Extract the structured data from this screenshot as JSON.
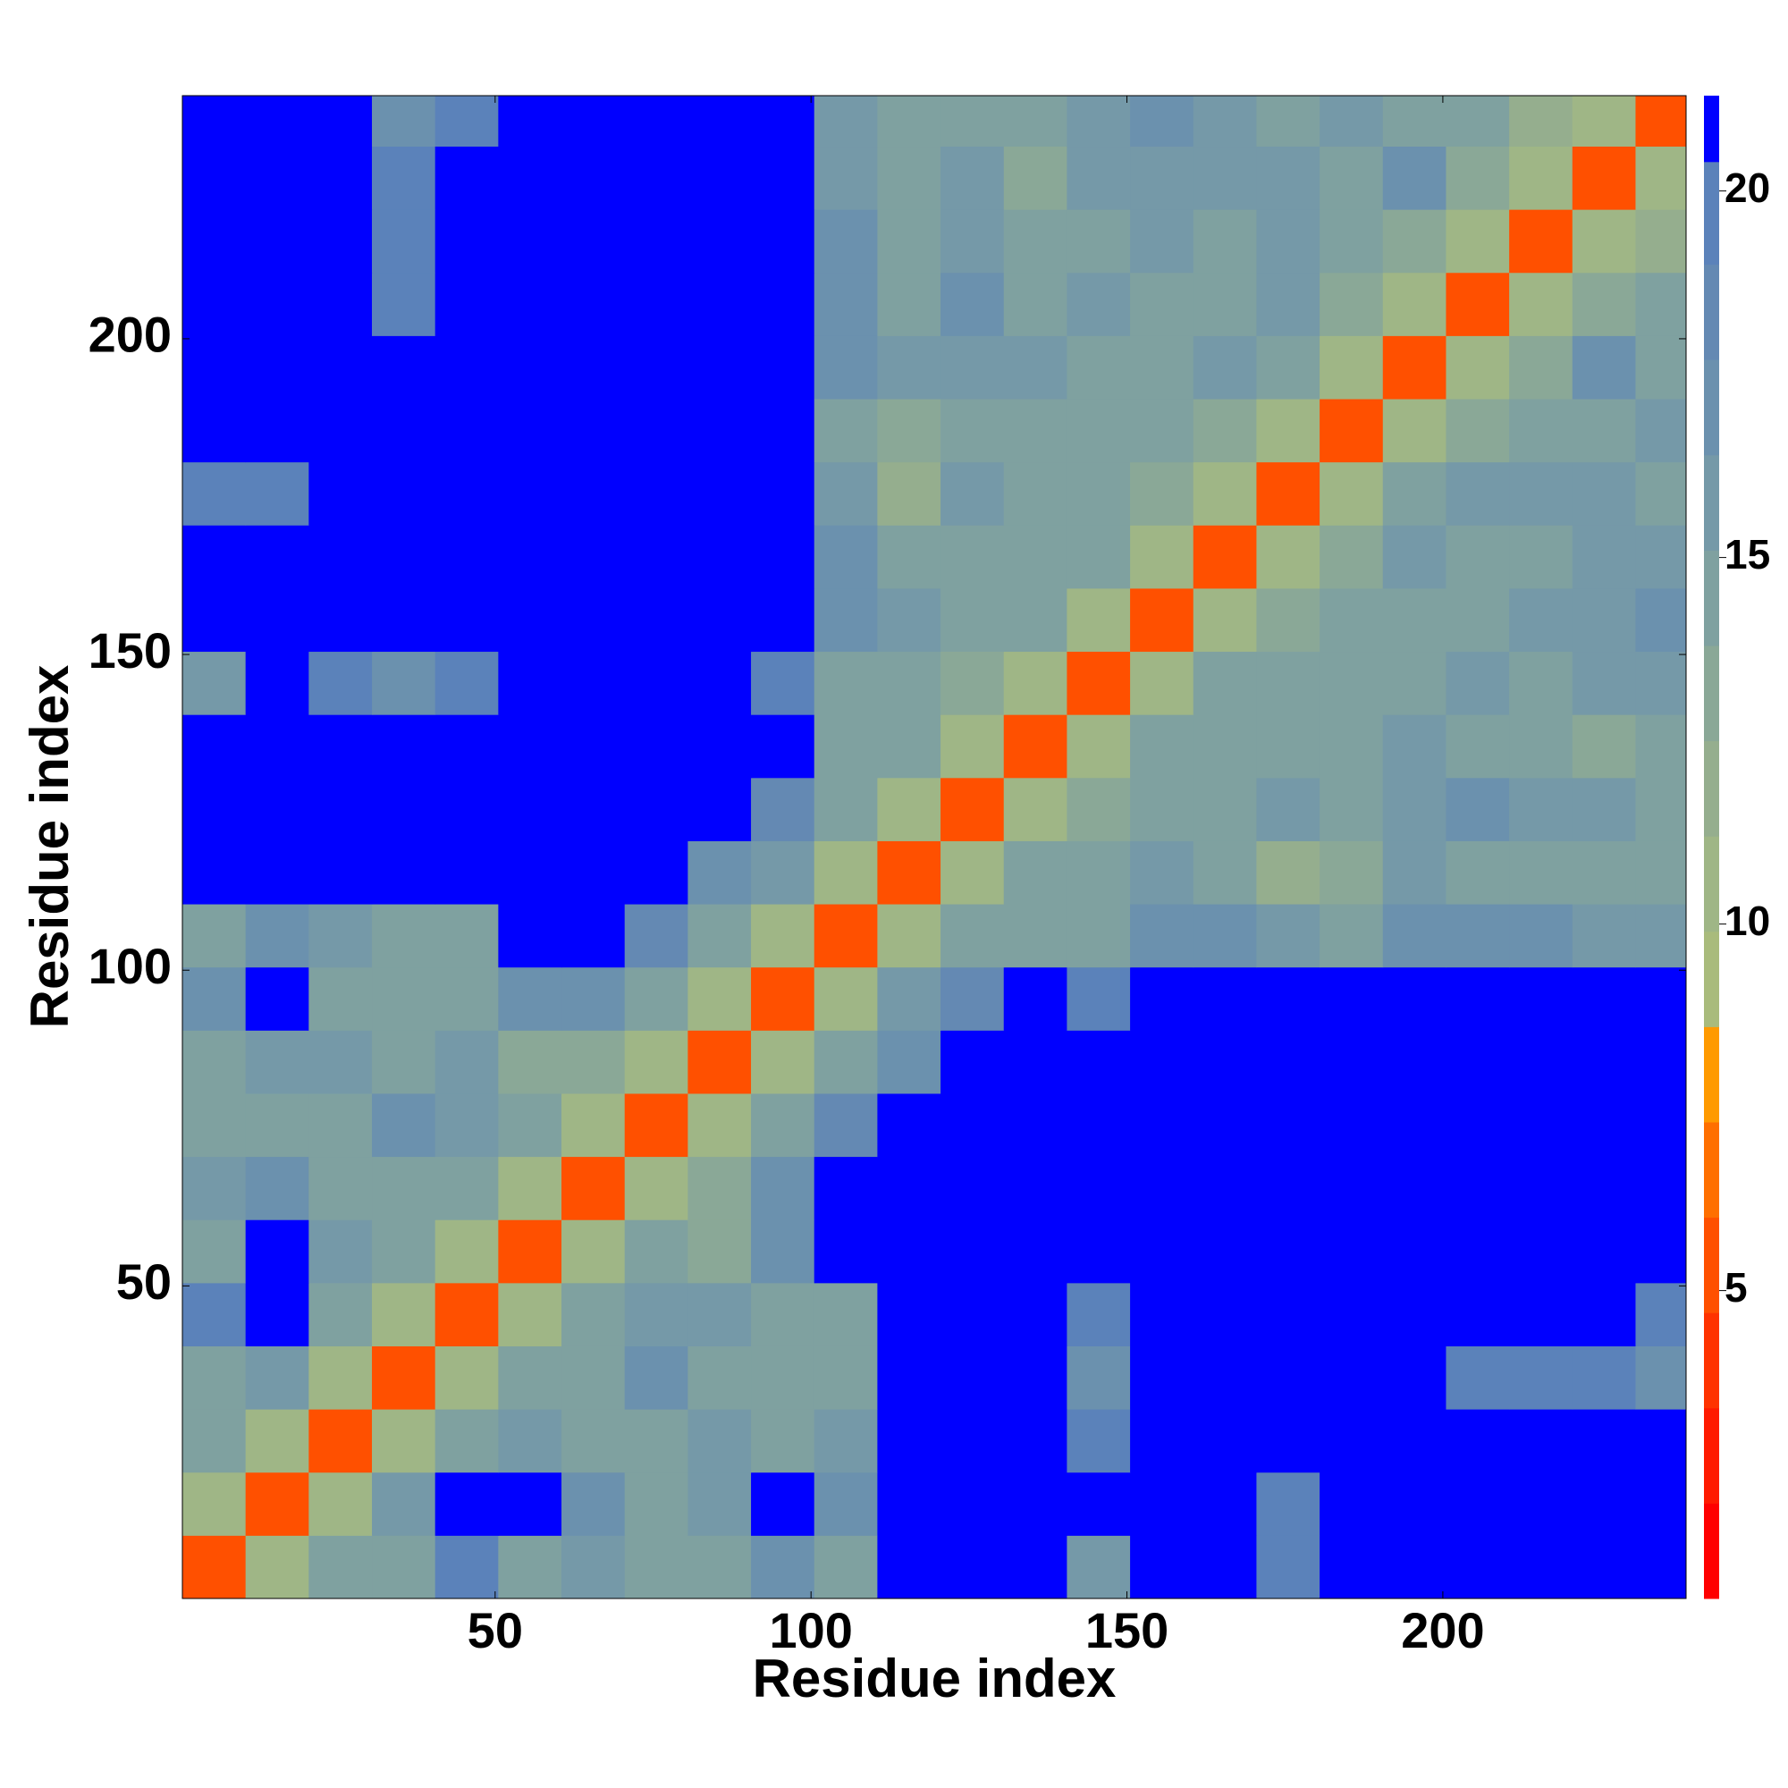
{
  "chart_data": {
    "type": "heatmap",
    "xlabel": "Residue index",
    "ylabel": "Residue index",
    "xlim": [
      0.5,
      238.5
    ],
    "ylim": [
      0.5,
      238.5
    ],
    "xticks": [
      50,
      100,
      150,
      200
    ],
    "yticks": [
      50,
      100,
      150,
      200
    ],
    "bins": [
      0.5,
      10.5,
      20.5,
      30.5,
      40.5,
      50.5,
      60.5,
      70.5,
      80.5,
      90.5,
      100.5,
      110.5,
      120.5,
      130.5,
      140.5,
      150.5,
      160.5,
      170.5,
      180.5,
      190.5,
      200.5,
      210.5,
      220.5,
      230.5,
      238.5
    ],
    "z": [
      [
        5,
        11,
        14,
        15,
        19,
        15,
        16,
        15,
        14,
        17,
        15,
        21,
        21,
        21,
        16,
        21,
        21,
        19,
        21,
        21,
        21,
        21,
        21,
        21
      ],
      [
        11,
        5,
        11,
        16,
        21,
        21,
        17,
        15,
        16,
        21,
        17,
        21,
        21,
        21,
        21,
        21,
        21,
        19,
        21,
        21,
        21,
        21,
        21,
        21
      ],
      [
        14,
        11,
        5,
        11,
        14,
        16,
        15,
        14,
        16,
        14,
        16,
        21,
        21,
        21,
        19,
        21,
        21,
        21,
        21,
        21,
        21,
        21,
        21,
        21
      ],
      [
        15,
        16,
        11,
        5,
        11,
        14,
        15,
        17,
        15,
        15,
        14,
        21,
        21,
        21,
        17,
        21,
        21,
        21,
        21,
        21,
        20,
        20,
        19,
        17
      ],
      [
        19,
        21,
        14,
        11,
        5,
        11,
        14,
        16,
        16,
        15,
        15,
        21,
        21,
        21,
        20,
        21,
        21,
        21,
        21,
        21,
        21,
        21,
        21,
        20
      ],
      [
        15,
        21,
        16,
        14,
        11,
        5,
        11,
        15,
        13,
        17,
        21,
        21,
        21,
        21,
        21,
        21,
        21,
        21,
        21,
        21,
        21,
        21,
        21,
        21
      ],
      [
        16,
        17,
        15,
        15,
        14,
        11,
        5,
        10,
        13,
        17,
        21,
        21,
        21,
        21,
        21,
        21,
        21,
        21,
        21,
        21,
        21,
        21,
        21,
        21
      ],
      [
        15,
        15,
        14,
        17,
        16,
        15,
        10,
        5,
        11,
        14,
        18,
        21,
        21,
        21,
        21,
        21,
        21,
        21,
        21,
        21,
        21,
        21,
        21,
        21
      ],
      [
        14,
        16,
        16,
        15,
        16,
        13,
        13,
        11,
        5,
        11,
        15,
        17,
        21,
        21,
        21,
        21,
        21,
        21,
        21,
        21,
        21,
        21,
        21,
        21
      ],
      [
        17,
        21,
        14,
        15,
        15,
        17,
        17,
        14,
        11,
        5,
        11,
        16,
        18,
        21,
        19,
        21,
        21,
        21,
        21,
        21,
        21,
        21,
        21,
        21
      ],
      [
        15,
        17,
        16,
        14,
        15,
        21,
        21,
        18,
        15,
        11,
        5,
        11,
        15,
        15,
        15,
        17,
        17,
        16,
        15,
        17,
        17,
        17,
        16,
        16
      ],
      [
        21,
        21,
        21,
        21,
        21,
        21,
        21,
        21,
        17,
        16,
        11,
        5,
        11,
        14,
        15,
        16,
        15,
        12,
        13,
        16,
        15,
        14,
        15,
        15
      ],
      [
        21,
        21,
        21,
        21,
        21,
        21,
        21,
        21,
        21,
        18,
        15,
        11,
        5,
        11,
        13,
        14,
        15,
        16,
        15,
        16,
        17,
        16,
        16,
        15
      ],
      [
        21,
        21,
        21,
        21,
        21,
        21,
        21,
        21,
        21,
        21,
        15,
        14,
        11,
        5,
        11,
        14,
        15,
        15,
        15,
        16,
        15,
        14,
        13,
        15
      ],
      [
        16,
        21,
        19,
        17,
        20,
        21,
        21,
        21,
        21,
        19,
        15,
        15,
        13,
        11,
        5,
        11,
        14,
        15,
        15,
        15,
        16,
        14,
        16,
        16
      ],
      [
        21,
        21,
        21,
        21,
        21,
        21,
        21,
        21,
        21,
        21,
        17,
        16,
        14,
        14,
        11,
        5,
        11,
        13,
        15,
        15,
        14,
        16,
        16,
        17
      ],
      [
        21,
        21,
        21,
        21,
        21,
        21,
        21,
        21,
        21,
        21,
        17,
        15,
        15,
        15,
        14,
        11,
        5,
        11,
        13,
        16,
        15,
        15,
        16,
        16
      ],
      [
        19,
        19,
        21,
        21,
        21,
        21,
        21,
        21,
        21,
        21,
        16,
        12,
        16,
        15,
        15,
        13,
        11,
        5,
        11,
        14,
        16,
        16,
        16,
        15
      ],
      [
        21,
        21,
        21,
        21,
        21,
        21,
        21,
        21,
        21,
        21,
        15,
        13,
        15,
        15,
        15,
        15,
        13,
        11,
        5,
        11,
        13,
        14,
        15,
        16
      ],
      [
        21,
        21,
        21,
        21,
        21,
        21,
        21,
        21,
        21,
        21,
        17,
        16,
        16,
        16,
        15,
        15,
        16,
        14,
        11,
        5,
        11,
        13,
        17,
        15
      ],
      [
        21,
        21,
        21,
        20,
        21,
        21,
        21,
        21,
        21,
        21,
        17,
        15,
        17,
        15,
        16,
        14,
        15,
        16,
        13,
        11,
        5,
        11,
        13,
        15
      ],
      [
        21,
        21,
        21,
        20,
        21,
        21,
        21,
        21,
        21,
        21,
        17,
        14,
        16,
        14,
        14,
        16,
        15,
        16,
        14,
        13,
        11,
        5,
        11,
        12
      ],
      [
        21,
        21,
        21,
        19,
        21,
        21,
        21,
        21,
        21,
        21,
        16,
        15,
        16,
        13,
        16,
        16,
        16,
        16,
        15,
        17,
        13,
        11,
        5,
        11
      ],
      [
        21,
        21,
        21,
        17,
        20,
        21,
        21,
        21,
        21,
        21,
        16,
        15,
        15,
        15,
        16,
        17,
        16,
        15,
        16,
        15,
        15,
        12,
        11,
        5
      ]
    ],
    "colorbar": {
      "clim": [
        0.8,
        21.3
      ],
      "ticks": [
        5,
        10,
        15,
        20
      ],
      "edges": [
        0.8,
        2.1,
        3.4,
        4.7,
        6.0,
        7.3,
        8.6,
        9.9,
        11.2,
        12.5,
        13.8,
        15.1,
        16.4,
        17.7,
        19.0,
        20.4,
        21.3
      ],
      "colors": [
        "#ff0000",
        "#ff1a00",
        "#ff3300",
        "#ff5000",
        "#ff6f00",
        "#ff9a00",
        "#a9bb7c",
        "#9fb686",
        "#95ae8e",
        "#8aa897",
        "#7fa1a0",
        "#7599a8",
        "#6b91ae",
        "#6489b3",
        "#5b82ba",
        "#0000ff"
      ]
    }
  }
}
